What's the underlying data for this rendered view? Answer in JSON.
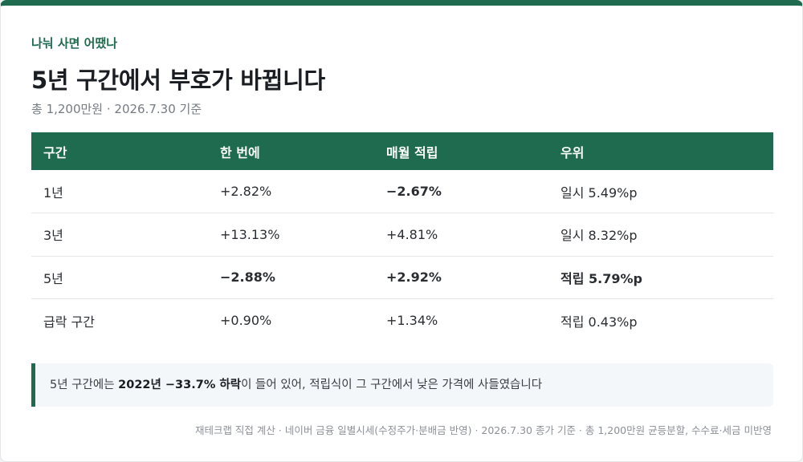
{
  "header": {
    "kicker": "나눠 사면 어땠나",
    "title": "5년 구간에서 부호가 바뀝니다",
    "subtitle": "총 1,200만원 · 2026.7.30 기준"
  },
  "table": {
    "columns": [
      "구간",
      "한 번에",
      "매월 적립",
      "우위"
    ],
    "rows": [
      {
        "period": "1년",
        "lump_sum": "+2.82%",
        "monthly": "−2.67%",
        "advantage": "일시 5.49%p"
      },
      {
        "period": "3년",
        "lump_sum": "+13.13%",
        "monthly": "+4.81%",
        "advantage": "일시 8.32%p"
      },
      {
        "period": "5년",
        "lump_sum": "−2.88%",
        "monthly": "+2.92%",
        "advantage": "적립 5.79%p"
      },
      {
        "period": "급락 구간",
        "lump_sum": "+0.90%",
        "monthly": "+1.34%",
        "advantage": "적립 0.43%p"
      }
    ]
  },
  "note": {
    "prefix": "5년 구간에는 ",
    "highlight": "2022년 −33.7% 하락",
    "suffix": "이 들어 있어, 적립식이 그 구간에서 낮은 가격에 사들였습니다"
  },
  "footer": {
    "source": "재테크랩 직접 계산 · 네이버 금융 일별시세(수정주가·분배금 반영) · 2026.7.30 종가 기준 · 총 1,200만원 균등분할, 수수료·세금 미반영"
  },
  "colors": {
    "accent": "#1e6b4f",
    "negative": "#b43a2b",
    "positive": "#1f7a48"
  }
}
